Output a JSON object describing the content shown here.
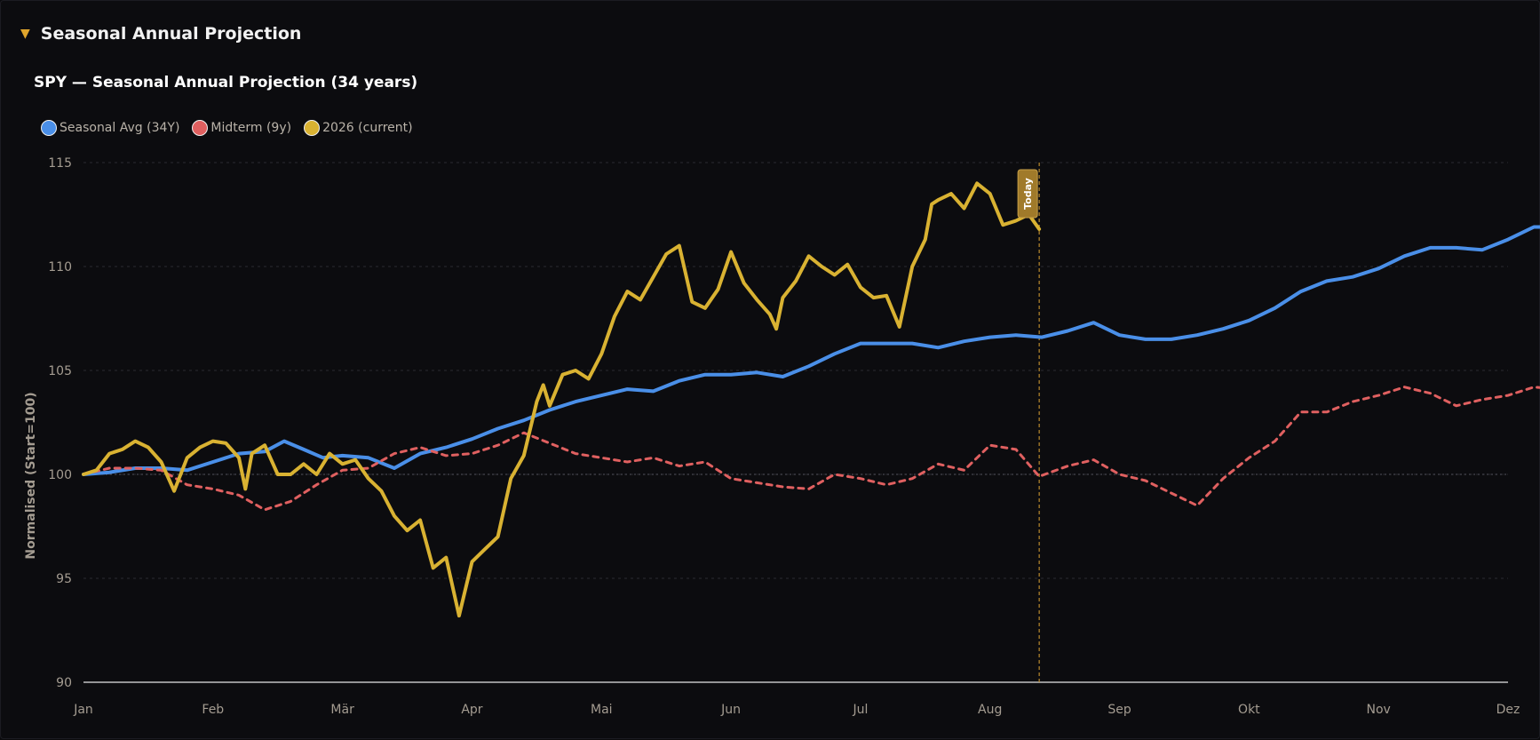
{
  "section": {
    "caret_glyph": "▼",
    "title": "Seasonal Annual Projection"
  },
  "colors": {
    "background": "#0c0c0f",
    "grid": "#2a2a30",
    "axis": "#e6e6e6",
    "tick_text": "#a49c91",
    "accent": "#e0a52c",
    "today_marker": "#b98a2e"
  },
  "chart_data": {
    "type": "line",
    "title": "SPY — Seasonal Annual Projection (34 years)",
    "ylabel": "Normalised (Start=100)",
    "xlabel": "",
    "ylim": [
      90,
      115
    ],
    "yticks": [
      90,
      95,
      100,
      105,
      110,
      115
    ],
    "grid": true,
    "legend_position": "top-left",
    "reference_line": 100,
    "months": [
      "Jan",
      "Feb",
      "Mär",
      "Apr",
      "Mai",
      "Jun",
      "Jul",
      "Aug",
      "Sep",
      "Okt",
      "Nov",
      "Dez"
    ],
    "today": {
      "label": "Today",
      "month_position": 7.38
    },
    "series": [
      {
        "name": "Seasonal Avg (34Y)",
        "color": "#4a8fe8",
        "style": "solid",
        "points": [
          [
            0,
            100
          ],
          [
            0.2,
            100.1
          ],
          [
            0.4,
            100.3
          ],
          [
            0.6,
            100.3
          ],
          [
            0.8,
            100.2
          ],
          [
            1.0,
            100.6
          ],
          [
            1.2,
            101.0
          ],
          [
            1.4,
            101.1
          ],
          [
            1.55,
            101.6
          ],
          [
            1.7,
            101.2
          ],
          [
            1.85,
            100.8
          ],
          [
            2.0,
            100.9
          ],
          [
            2.2,
            100.8
          ],
          [
            2.4,
            100.3
          ],
          [
            2.6,
            101.0
          ],
          [
            2.8,
            101.3
          ],
          [
            3.0,
            101.7
          ],
          [
            3.2,
            102.2
          ],
          [
            3.4,
            102.6
          ],
          [
            3.6,
            103.1
          ],
          [
            3.8,
            103.5
          ],
          [
            4.0,
            103.8
          ],
          [
            4.2,
            104.1
          ],
          [
            4.4,
            104.0
          ],
          [
            4.6,
            104.5
          ],
          [
            4.8,
            104.8
          ],
          [
            5.0,
            104.8
          ],
          [
            5.2,
            104.9
          ],
          [
            5.4,
            104.7
          ],
          [
            5.6,
            105.2
          ],
          [
            5.8,
            105.8
          ],
          [
            6.0,
            106.3
          ],
          [
            6.2,
            106.3
          ],
          [
            6.4,
            106.3
          ],
          [
            6.6,
            106.1
          ],
          [
            6.8,
            106.4
          ],
          [
            7.0,
            106.6
          ],
          [
            7.2,
            106.7
          ],
          [
            7.4,
            106.6
          ],
          [
            7.6,
            106.9
          ],
          [
            7.8,
            107.3
          ],
          [
            8.0,
            106.7
          ],
          [
            8.2,
            106.5
          ],
          [
            8.4,
            106.5
          ],
          [
            8.6,
            106.7
          ],
          [
            8.8,
            107.0
          ],
          [
            9.0,
            107.4
          ],
          [
            9.2,
            108.0
          ],
          [
            9.4,
            108.8
          ],
          [
            9.6,
            109.3
          ],
          [
            9.8,
            109.5
          ],
          [
            10.0,
            109.9
          ],
          [
            10.2,
            110.5
          ],
          [
            10.4,
            110.9
          ],
          [
            10.6,
            110.9
          ],
          [
            10.8,
            110.8
          ],
          [
            11.0,
            111.3
          ],
          [
            11.2,
            111.9
          ],
          [
            11.4,
            111.9
          ],
          [
            11.5,
            111.8
          ]
        ]
      },
      {
        "name": "Midterm (9y)",
        "color": "#e06060",
        "style": "dashed",
        "points": [
          [
            0,
            100
          ],
          [
            0.2,
            100.3
          ],
          [
            0.4,
            100.3
          ],
          [
            0.6,
            100.2
          ],
          [
            0.8,
            99.5
          ],
          [
            1.0,
            99.3
          ],
          [
            1.2,
            99.0
          ],
          [
            1.4,
            98.3
          ],
          [
            1.6,
            98.7
          ],
          [
            1.8,
            99.5
          ],
          [
            2.0,
            100.2
          ],
          [
            2.2,
            100.3
          ],
          [
            2.4,
            101.0
          ],
          [
            2.6,
            101.3
          ],
          [
            2.8,
            100.9
          ],
          [
            3.0,
            101.0
          ],
          [
            3.2,
            101.4
          ],
          [
            3.4,
            102.0
          ],
          [
            3.6,
            101.5
          ],
          [
            3.8,
            101.0
          ],
          [
            4.0,
            100.8
          ],
          [
            4.2,
            100.6
          ],
          [
            4.4,
            100.8
          ],
          [
            4.6,
            100.4
          ],
          [
            4.8,
            100.6
          ],
          [
            5.0,
            99.8
          ],
          [
            5.2,
            99.6
          ],
          [
            5.4,
            99.4
          ],
          [
            5.6,
            99.3
          ],
          [
            5.8,
            100.0
          ],
          [
            6.0,
            99.8
          ],
          [
            6.2,
            99.5
          ],
          [
            6.4,
            99.8
          ],
          [
            6.6,
            100.5
          ],
          [
            6.8,
            100.2
          ],
          [
            7.0,
            101.4
          ],
          [
            7.2,
            101.2
          ],
          [
            7.38,
            99.9
          ],
          [
            7.6,
            100.4
          ],
          [
            7.8,
            100.7
          ],
          [
            8.0,
            100.0
          ],
          [
            8.2,
            99.7
          ],
          [
            8.4,
            99.1
          ],
          [
            8.6,
            98.5
          ],
          [
            8.8,
            99.8
          ],
          [
            9.0,
            100.8
          ],
          [
            9.2,
            101.6
          ],
          [
            9.4,
            103.0
          ],
          [
            9.6,
            103.0
          ],
          [
            9.8,
            103.5
          ],
          [
            10.0,
            103.8
          ],
          [
            10.2,
            104.2
          ],
          [
            10.4,
            103.9
          ],
          [
            10.6,
            103.3
          ],
          [
            10.8,
            103.6
          ],
          [
            11.0,
            103.8
          ],
          [
            11.2,
            104.2
          ],
          [
            11.4,
            104.1
          ],
          [
            11.5,
            104.0
          ]
        ]
      },
      {
        "name": "2026 (current)",
        "color": "#d9b232",
        "style": "solid",
        "points": [
          [
            0,
            100
          ],
          [
            0.1,
            100.2
          ],
          [
            0.2,
            101.0
          ],
          [
            0.3,
            101.2
          ],
          [
            0.4,
            101.6
          ],
          [
            0.5,
            101.3
          ],
          [
            0.6,
            100.6
          ],
          [
            0.7,
            99.2
          ],
          [
            0.8,
            100.8
          ],
          [
            0.9,
            101.3
          ],
          [
            1.0,
            101.6
          ],
          [
            1.1,
            101.5
          ],
          [
            1.2,
            100.8
          ],
          [
            1.25,
            99.3
          ],
          [
            1.3,
            101.0
          ],
          [
            1.4,
            101.4
          ],
          [
            1.5,
            100.0
          ],
          [
            1.6,
            100.0
          ],
          [
            1.7,
            100.5
          ],
          [
            1.8,
            100.0
          ],
          [
            1.9,
            101.0
          ],
          [
            2.0,
            100.5
          ],
          [
            2.1,
            100.7
          ],
          [
            2.2,
            99.8
          ],
          [
            2.3,
            99.2
          ],
          [
            2.4,
            98.0
          ],
          [
            2.5,
            97.3
          ],
          [
            2.6,
            97.8
          ],
          [
            2.7,
            95.5
          ],
          [
            2.8,
            96.0
          ],
          [
            2.9,
            93.2
          ],
          [
            3.0,
            95.8
          ],
          [
            3.1,
            96.4
          ],
          [
            3.2,
            97.0
          ],
          [
            3.3,
            99.8
          ],
          [
            3.4,
            100.9
          ],
          [
            3.5,
            103.5
          ],
          [
            3.55,
            104.3
          ],
          [
            3.6,
            103.3
          ],
          [
            3.7,
            104.8
          ],
          [
            3.8,
            105.0
          ],
          [
            3.9,
            104.6
          ],
          [
            4.0,
            105.8
          ],
          [
            4.1,
            107.6
          ],
          [
            4.2,
            108.8
          ],
          [
            4.3,
            108.4
          ],
          [
            4.4,
            109.5
          ],
          [
            4.5,
            110.6
          ],
          [
            4.6,
            111.0
          ],
          [
            4.7,
            108.3
          ],
          [
            4.8,
            108.0
          ],
          [
            4.9,
            108.9
          ],
          [
            5.0,
            110.7
          ],
          [
            5.1,
            109.2
          ],
          [
            5.2,
            108.4
          ],
          [
            5.3,
            107.7
          ],
          [
            5.35,
            107.0
          ],
          [
            5.4,
            108.5
          ],
          [
            5.5,
            109.3
          ],
          [
            5.6,
            110.5
          ],
          [
            5.7,
            110.0
          ],
          [
            5.8,
            109.6
          ],
          [
            5.9,
            110.1
          ],
          [
            6.0,
            109.0
          ],
          [
            6.1,
            108.5
          ],
          [
            6.2,
            108.6
          ],
          [
            6.3,
            107.1
          ],
          [
            6.4,
            110.0
          ],
          [
            6.5,
            111.3
          ],
          [
            6.55,
            113.0
          ],
          [
            6.6,
            113.2
          ],
          [
            6.7,
            113.5
          ],
          [
            6.8,
            112.8
          ],
          [
            6.9,
            114.0
          ],
          [
            7.0,
            113.5
          ],
          [
            7.1,
            112.0
          ],
          [
            7.2,
            112.2
          ],
          [
            7.3,
            112.5
          ],
          [
            7.38,
            111.8
          ]
        ]
      }
    ]
  }
}
